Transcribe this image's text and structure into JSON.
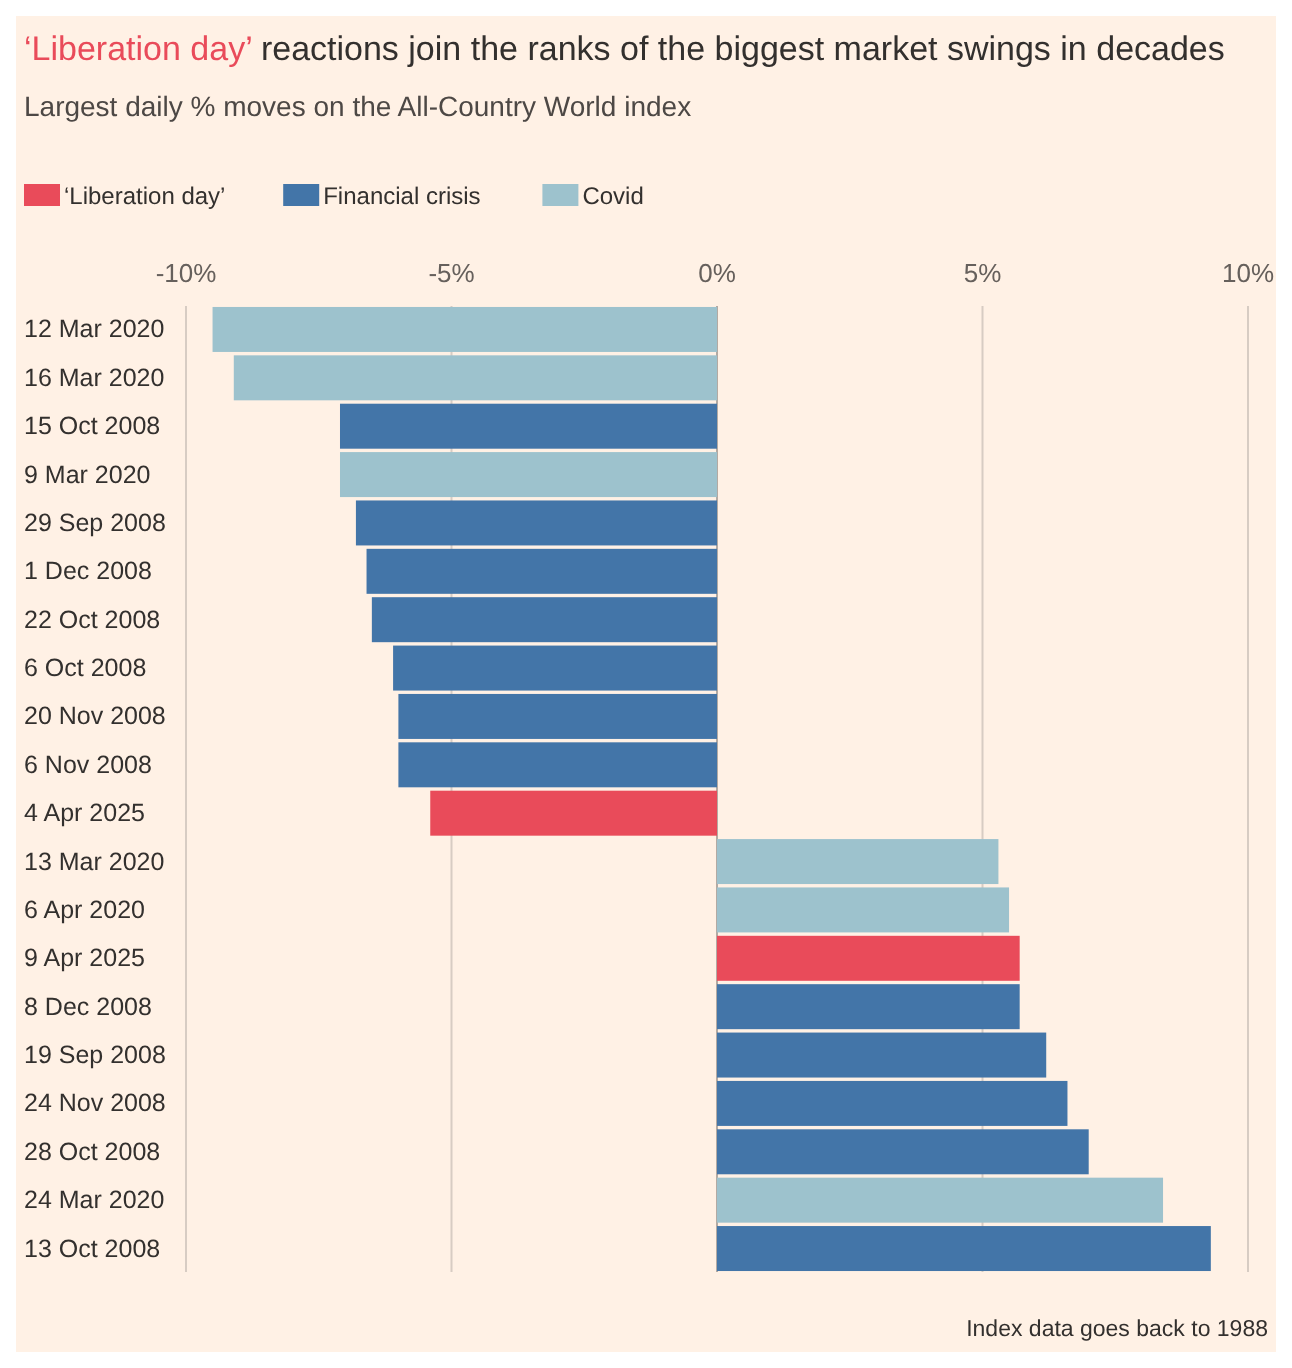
{
  "chart_data": {
    "type": "bar",
    "orientation": "horizontal",
    "stacked": true,
    "title": "‘Liberation day’ reactions join the ranks of the biggest market swings in decades",
    "subtitle": "Largest daily % moves on the All-Country World index",
    "categories": [
      "12 Mar 2020",
      "16 Mar 2020",
      "15 Oct 2008",
      "9 Mar 2020",
      "29 Sep 2008",
      "1 Dec 2008",
      "22 Oct 2008",
      "6 Oct 2008",
      "20 Nov 2008",
      "6 Nov 2008",
      "4 Apr 2025",
      "13 Mar 2020",
      "6 Apr 2020",
      "9 Apr 2025",
      "8 Dec 2008",
      "19 Sep 2008",
      "24 Nov 2008",
      "28 Oct 2008",
      "24 Mar 2020",
      "13 Oct 2008"
    ],
    "series": [
      {
        "name": "‘Liberation day’",
        "color": "#e94b5a",
        "values": [
          null,
          null,
          null,
          null,
          null,
          null,
          null,
          null,
          null,
          null,
          -5.4,
          null,
          null,
          5.7,
          null,
          null,
          null,
          null,
          null,
          null
        ]
      },
      {
        "name": "Financial crisis",
        "color": "#4375a8",
        "values": [
          null,
          null,
          -7.1,
          null,
          -6.8,
          -6.6,
          -6.5,
          -6.1,
          -6.0,
          -6.0,
          null,
          null,
          null,
          null,
          5.7,
          6.2,
          6.6,
          7.0,
          null,
          9.3
        ]
      },
      {
        "name": "Covid",
        "color": "#9dc2cd",
        "values": [
          -9.5,
          -9.1,
          null,
          -7.1,
          null,
          null,
          null,
          null,
          null,
          null,
          null,
          5.3,
          5.5,
          null,
          null,
          null,
          null,
          null,
          8.4,
          null
        ]
      }
    ],
    "xlim": [
      -10,
      10
    ],
    "xticks": [
      {
        "value": -10,
        "label": "-10%"
      },
      {
        "value": -5,
        "label": "-5%"
      },
      {
        "value": 0,
        "label": "0%"
      },
      {
        "value": 5,
        "label": "5%"
      },
      {
        "value": 10,
        "label": "10%"
      }
    ],
    "grid": "x",
    "legend": "top left",
    "annotations": [
      "Index data goes back to 1988"
    ]
  }
}
